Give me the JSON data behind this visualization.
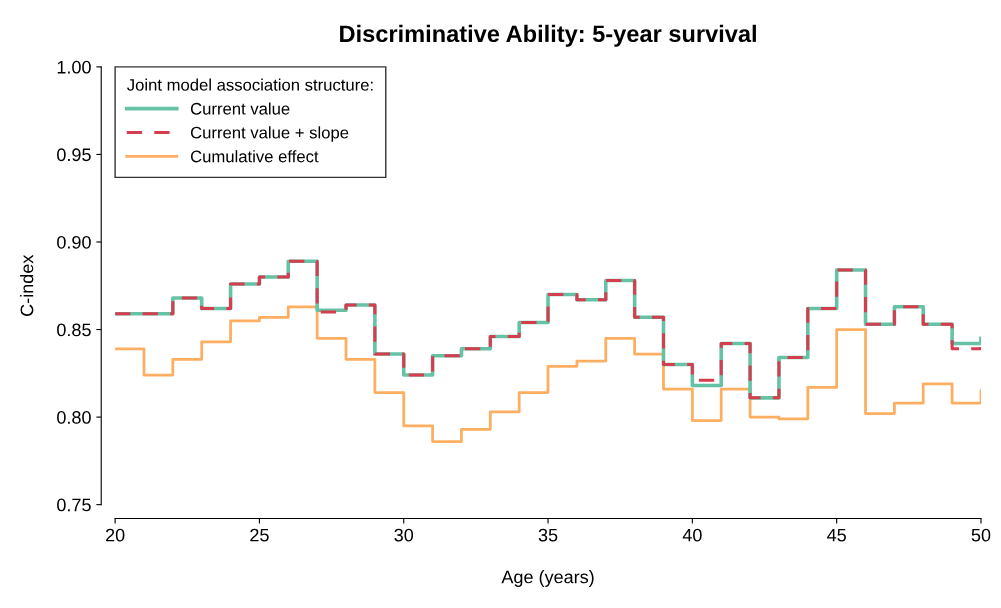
{
  "chart_data": {
    "type": "step",
    "title": "Discriminative Ability: 5-year survival",
    "xlabel": "Age (years)",
    "ylabel": "C-index",
    "legend_title": "Joint model association structure:",
    "legend": "top left",
    "grid": false,
    "x": [
      20,
      21,
      22,
      23,
      24,
      25,
      26,
      27,
      28,
      29,
      30,
      31,
      32,
      33,
      34,
      35,
      36,
      37,
      38,
      39,
      40,
      41,
      42,
      43,
      44,
      45,
      46,
      47,
      48,
      49,
      50
    ],
    "xlim": [
      20,
      50
    ],
    "ylim": [
      0.75,
      1.0
    ],
    "xticks": [
      20,
      25,
      30,
      35,
      40,
      45,
      50
    ],
    "yticks": [
      {
        "value": 0.75,
        "label": "0.75"
      },
      {
        "value": 0.8,
        "label": "0.80"
      },
      {
        "value": 0.85,
        "label": "0.85"
      },
      {
        "value": 0.9,
        "label": "0.90"
      },
      {
        "value": 0.95,
        "label": "0.95"
      },
      {
        "value": 1.0,
        "label": "1.00"
      }
    ],
    "series": [
      {
        "name": "Current value",
        "color": "#66c2a5",
        "line_style": "solid",
        "values": [
          0.859,
          0.859,
          0.868,
          0.862,
          0.876,
          0.88,
          0.889,
          0.861,
          0.864,
          0.836,
          0.824,
          0.835,
          0.839,
          0.846,
          0.854,
          0.87,
          0.867,
          0.878,
          0.857,
          0.83,
          0.818,
          0.842,
          0.811,
          0.834,
          0.862,
          0.884,
          0.853,
          0.863,
          0.853,
          0.842,
          0.845
        ]
      },
      {
        "name": "Current value + slope",
        "color": "#d53e4f",
        "line_style": "dashed",
        "values": [
          0.859,
          0.859,
          0.868,
          0.862,
          0.876,
          0.88,
          0.889,
          0.86,
          0.864,
          0.836,
          0.824,
          0.835,
          0.839,
          0.846,
          0.854,
          0.87,
          0.867,
          0.878,
          0.857,
          0.83,
          0.821,
          0.842,
          0.811,
          0.834,
          0.862,
          0.884,
          0.853,
          0.863,
          0.853,
          0.839,
          0.84
        ]
      },
      {
        "name": "Cumulative effect",
        "color": "#fdae61",
        "line_style": "solid",
        "values": [
          0.839,
          0.824,
          0.833,
          0.843,
          0.855,
          0.857,
          0.863,
          0.845,
          0.833,
          0.814,
          0.795,
          0.786,
          0.793,
          0.803,
          0.814,
          0.829,
          0.832,
          0.845,
          0.836,
          0.816,
          0.798,
          0.816,
          0.8,
          0.799,
          0.817,
          0.85,
          0.802,
          0.808,
          0.819,
          0.808,
          0.815
        ]
      }
    ]
  }
}
